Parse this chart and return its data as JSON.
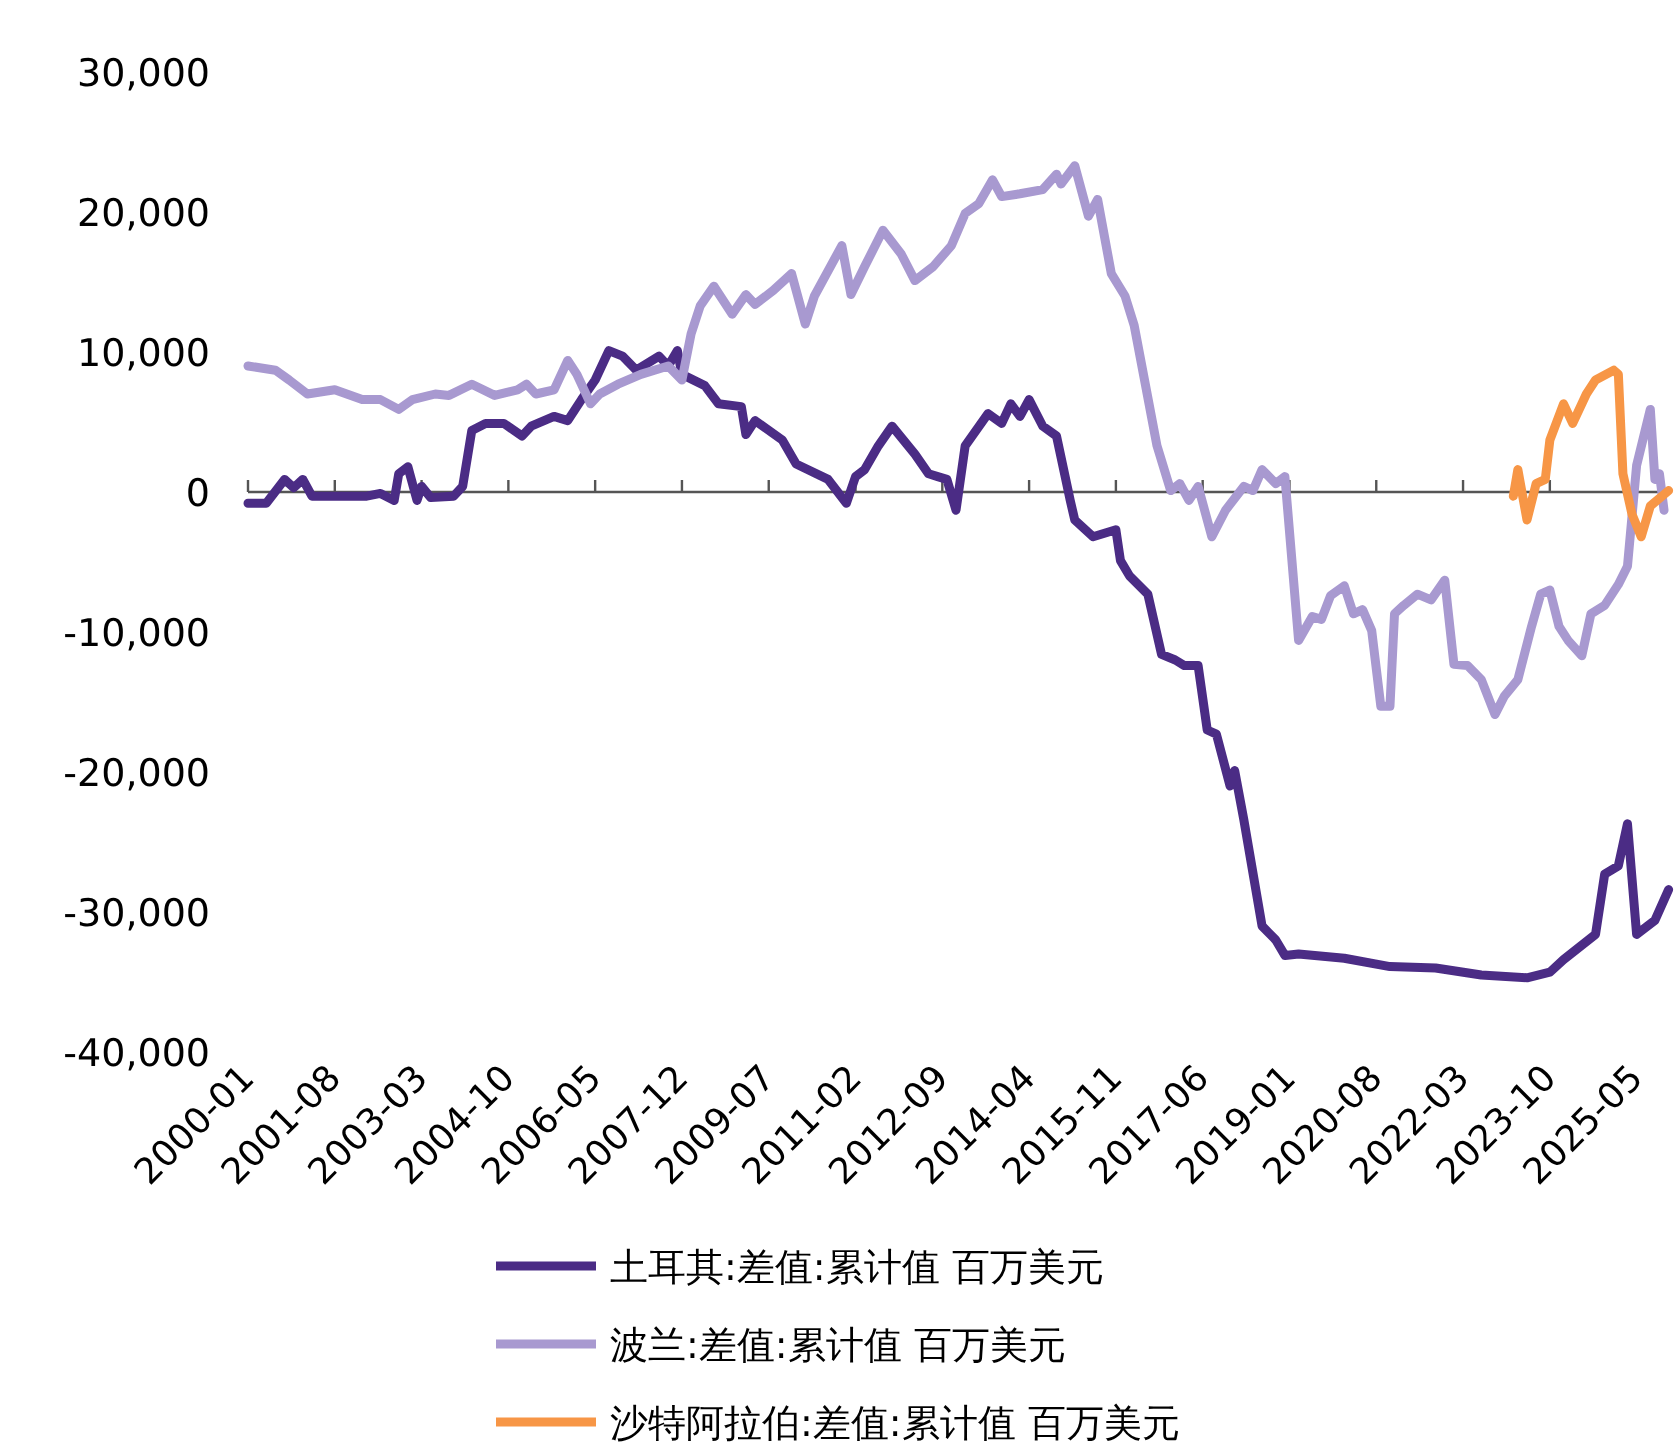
{
  "chart_data": {
    "type": "line",
    "xlim": [
      "2000-01",
      "2025-12"
    ],
    "ylim": [
      -40000,
      30000
    ],
    "xticks": [
      "2000-01",
      "2001-08",
      "2003-03",
      "2004-10",
      "2006-05",
      "2007-12",
      "2009-07",
      "2011-02",
      "2012-09",
      "2014-04",
      "2015-11",
      "2017-06",
      "2019-01",
      "2020-08",
      "2022-03",
      "2023-10",
      "2025-05"
    ],
    "yticks": [
      {
        "value": -40000,
        "label": "-40,000"
      },
      {
        "value": -30000,
        "label": "-30,000"
      },
      {
        "value": -20000,
        "label": "-20,000"
      },
      {
        "value": -10000,
        "label": "-10,000"
      },
      {
        "value": 0,
        "label": "0"
      },
      {
        "value": 10000,
        "label": "10,000"
      },
      {
        "value": 20000,
        "label": "20,000"
      },
      {
        "value": 30000,
        "label": "30,000"
      }
    ],
    "legend": "bottom",
    "marker": "none",
    "line_style": "solid",
    "series": [
      {
        "name": "土耳其:差值:累计值 百万美元",
        "color": "#4b2c85",
        "x": [
          "2000-01",
          "2000-05",
          "2000-09",
          "2000-11",
          "2001-01",
          "2001-03",
          "2002-03",
          "2002-06",
          "2002-09",
          "2002-10",
          "2002-12",
          "2003-02",
          "2003-03",
          "2003-05",
          "2003-10",
          "2003-12",
          "2004-02",
          "2004-05",
          "2004-09",
          "2005-01",
          "2005-03",
          "2005-08",
          "2005-11",
          "2006-02",
          "2006-05",
          "2006-08",
          "2006-11",
          "2007-02",
          "2007-07",
          "2007-09",
          "2007-11",
          "2007-12",
          "2008-05",
          "2008-08",
          "2009-01",
          "2009-02",
          "2009-04",
          "2009-10",
          "2010-01",
          "2010-08",
          "2010-12",
          "2011-02",
          "2011-04",
          "2011-07",
          "2011-10",
          "2012-03",
          "2012-06",
          "2012-08",
          "2012-10",
          "2012-12",
          "2013-02",
          "2013-07",
          "2013-10",
          "2013-12",
          "2014-02",
          "2014-04",
          "2014-07",
          "2014-10",
          "2015-01",
          "2015-02",
          "2015-06",
          "2015-11",
          "2015-12",
          "2016-02",
          "2016-06",
          "2016-09",
          "2016-12",
          "2017-02",
          "2017-05",
          "2017-07",
          "2017-09",
          "2017-12",
          "2018-01",
          "2018-03",
          "2018-07",
          "2018-10",
          "2018-12",
          "2019-03",
          "2020-01",
          "2020-11",
          "2021-09",
          "2022-07",
          "2023-05",
          "2023-10",
          "2024-01",
          "2024-08",
          "2024-10",
          "2025-01",
          "2025-03",
          "2025-05",
          "2025-09",
          "2025-12"
        ],
        "values": [
          -800,
          -800,
          900,
          300,
          900,
          -300,
          -300,
          -100,
          -600,
          1300,
          1800,
          -600,
          400,
          -400,
          -300,
          400,
          4400,
          4900,
          4900,
          4000,
          4700,
          5400,
          5100,
          6600,
          8000,
          10100,
          9700,
          8700,
          9700,
          9000,
          10100,
          8400,
          7600,
          6300,
          6100,
          4100,
          5100,
          3700,
          2000,
          900,
          -800,
          1100,
          1600,
          3300,
          4700,
          2700,
          1300,
          1100,
          900,
          -1300,
          3300,
          5600,
          4900,
          6300,
          5400,
          6600,
          4700,
          4000,
          -600,
          -2000,
          -3200,
          -2700,
          -4900,
          -6000,
          -7300,
          -11600,
          -12000,
          -12400,
          -12400,
          -17000,
          -17300,
          -21000,
          -19900,
          -23400,
          -31000,
          -32000,
          -33100,
          -33000,
          -33300,
          -33900,
          -34000,
          -34500,
          -34700,
          -34300,
          -33400,
          -31600,
          -27300,
          -26700,
          -23700,
          -31600,
          -30600,
          -28400
        ]
      },
      {
        "name": "波兰:差值:累计值 百万美元",
        "color": "#a899d0",
        "x": [
          "2000-01",
          "2000-07",
          "2000-10",
          "2001-02",
          "2001-08",
          "2002-02",
          "2002-06",
          "2002-10",
          "2003-01",
          "2003-06",
          "2003-09",
          "2004-02",
          "2004-07",
          "2004-12",
          "2005-02",
          "2005-04",
          "2005-08",
          "2005-11",
          "2006-01",
          "2006-04",
          "2006-06",
          "2006-10",
          "2007-03",
          "2007-09",
          "2007-12",
          "2008-02",
          "2008-04",
          "2008-07",
          "2008-11",
          "2009-02",
          "2009-04",
          "2009-08",
          "2009-12",
          "2010-03",
          "2010-05",
          "2010-11",
          "2011-01",
          "2011-04",
          "2011-08",
          "2011-12",
          "2012-03",
          "2012-07",
          "2012-11",
          "2013-02",
          "2013-05",
          "2013-08",
          "2013-10",
          "2014-02",
          "2014-07",
          "2014-10",
          "2014-11",
          "2015-02",
          "2015-05",
          "2015-07",
          "2015-10",
          "2016-01",
          "2016-03",
          "2016-08",
          "2016-11",
          "2017-01",
          "2017-03",
          "2017-05",
          "2017-08",
          "2017-11",
          "2018-03",
          "2018-05",
          "2018-07",
          "2018-10",
          "2018-12",
          "2019-03",
          "2019-06",
          "2019-08",
          "2019-10",
          "2020-01",
          "2020-03",
          "2020-05",
          "2020-07",
          "2020-09",
          "2020-11",
          "2020-12",
          "2021-02",
          "2021-05",
          "2021-08",
          "2021-11",
          "2022-01",
          "2022-04",
          "2022-07",
          "2022-10",
          "2022-12",
          "2023-03",
          "2023-06",
          "2023-08",
          "2023-10",
          "2023-12",
          "2024-02",
          "2024-05",
          "2024-07",
          "2024-10",
          "2025-01",
          "2025-03",
          "2025-05",
          "2025-08",
          "2025-09",
          "2025-10",
          "2025-11"
        ],
        "values": [
          9000,
          8700,
          8000,
          7000,
          7300,
          6600,
          6600,
          5900,
          6600,
          7000,
          6900,
          7700,
          6900,
          7300,
          7700,
          7000,
          7300,
          9400,
          8400,
          6300,
          7000,
          7700,
          8400,
          9000,
          8000,
          11300,
          13300,
          14700,
          12700,
          14100,
          13400,
          14400,
          15600,
          12000,
          14000,
          17600,
          14100,
          16100,
          18700,
          17000,
          15100,
          16100,
          17600,
          19900,
          20600,
          22300,
          21100,
          21300,
          21600,
          22700,
          22000,
          23300,
          19700,
          20900,
          15600,
          14000,
          11900,
          3300,
          100,
          600,
          -600,
          400,
          -3200,
          -1300,
          400,
          100,
          1600,
          600,
          1100,
          -10600,
          -8900,
          -9100,
          -7400,
          -6700,
          -8700,
          -8400,
          -9900,
          -15300,
          -15300,
          -8700,
          -8100,
          -7300,
          -7700,
          -6300,
          -12300,
          -12400,
          -13400,
          -15900,
          -14600,
          -13400,
          -9600,
          -7300,
          -7000,
          -9600,
          -10600,
          -11700,
          -8700,
          -8100,
          -6600,
          -5300,
          1900,
          5900,
          900,
          1300,
          -1300
        ]
      },
      {
        "name": "沙特阿拉伯:差值:累计值 百万美元",
        "color": "#f79646",
        "x": [
          "2023-02",
          "2023-03",
          "2023-05",
          "2023-07",
          "2023-09",
          "2023-10",
          "2024-01",
          "2024-03",
          "2024-06",
          "2024-08",
          "2024-12",
          "2025-01",
          "2025-02",
          "2025-04",
          "2025-06",
          "2025-08",
          "2025-12"
        ],
        "values": [
          -300,
          1600,
          -2000,
          600,
          900,
          3700,
          6300,
          4900,
          7000,
          8000,
          8700,
          8400,
          1300,
          -1600,
          -3200,
          -1000,
          100
        ]
      }
    ]
  }
}
